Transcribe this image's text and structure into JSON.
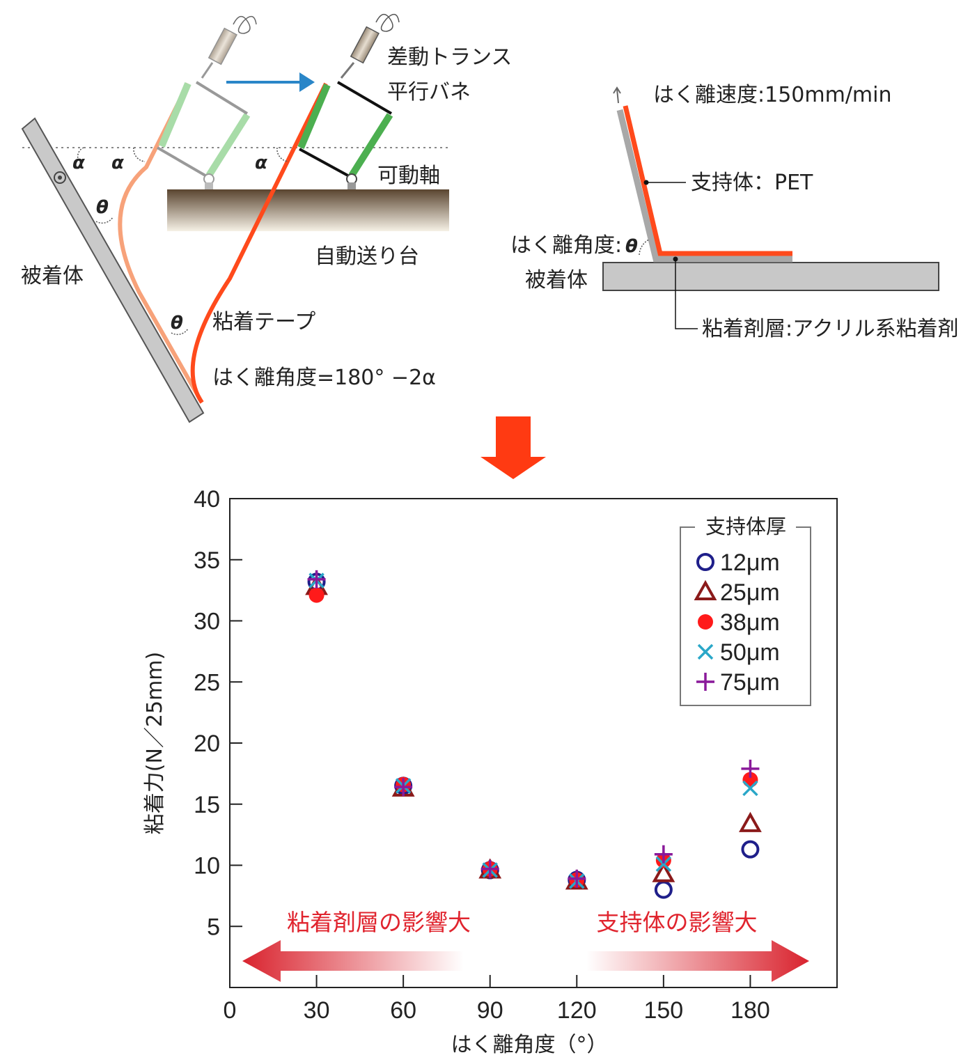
{
  "diagram_left": {
    "labels": {
      "differential_transformer": "差動トランス",
      "parallel_spring": "平行バネ",
      "movable_axis": "可動軸",
      "auto_feed_table": "自動送り台",
      "adherend": "被着体",
      "adhesive_tape": "粘着テープ",
      "alpha": "α",
      "theta": "θ",
      "peel_angle_formula": "はく離角度=180°  −2α"
    },
    "colors": {
      "tape": "#ff4a1c",
      "spring": "#4caf50",
      "arrow": "#2a86c8"
    }
  },
  "diagram_right": {
    "labels": {
      "peel_speed": "はく離速度:150mm/min",
      "support": "支持体：PET",
      "peel_angle": "はく離角度:",
      "theta": "θ",
      "adherend": "被着体",
      "adhesive_layer": "粘着剤層:アクリル系粘着剤"
    }
  },
  "chart_data": {
    "type": "scatter",
    "xlabel": "はく離角度（°）",
    "ylabel": "粘着力(N／25mm)",
    "xlim": [
      0,
      210
    ],
    "ylim": [
      0,
      40
    ],
    "xticks": [
      0,
      30,
      60,
      90,
      120,
      150,
      180
    ],
    "yticks": [
      5,
      10,
      15,
      20,
      25,
      30,
      35,
      40
    ],
    "legend_title": "支持体厚",
    "legend_position": "top-right",
    "series": [
      {
        "name": "12μm",
        "marker": "circle-open",
        "color": "#1f1f8a",
        "x": [
          30,
          60,
          90,
          120,
          150,
          180
        ],
        "y": [
          33.2,
          16.5,
          9.6,
          8.8,
          8.0,
          11.3
        ]
      },
      {
        "name": "25μm",
        "marker": "triangle-open",
        "color": "#8b1a1a",
        "x": [
          30,
          60,
          90,
          120,
          150,
          180
        ],
        "y": [
          32.8,
          16.3,
          9.6,
          8.7,
          9.3,
          13.4
        ]
      },
      {
        "name": "38μm",
        "marker": "circle-filled",
        "color": "#ff1a1a",
        "x": [
          30,
          60,
          90,
          120,
          150,
          180
        ],
        "y": [
          32.1,
          16.6,
          9.7,
          8.8,
          10.4,
          17.0
        ]
      },
      {
        "name": "50μm",
        "marker": "x",
        "color": "#2aa7c8",
        "x": [
          30,
          60,
          90,
          120,
          150,
          180
        ],
        "y": [
          33.3,
          16.5,
          9.6,
          8.7,
          10.1,
          16.3
        ]
      },
      {
        "name": "75μm",
        "marker": "plus",
        "color": "#8a1a9a",
        "x": [
          30,
          60,
          90,
          120,
          150,
          180
        ],
        "y": [
          33.4,
          16.4,
          9.7,
          8.9,
          10.9,
          17.9
        ]
      }
    ],
    "annotations": {
      "left": "粘着剤層の影響大",
      "right": "支持体の影響大"
    }
  }
}
